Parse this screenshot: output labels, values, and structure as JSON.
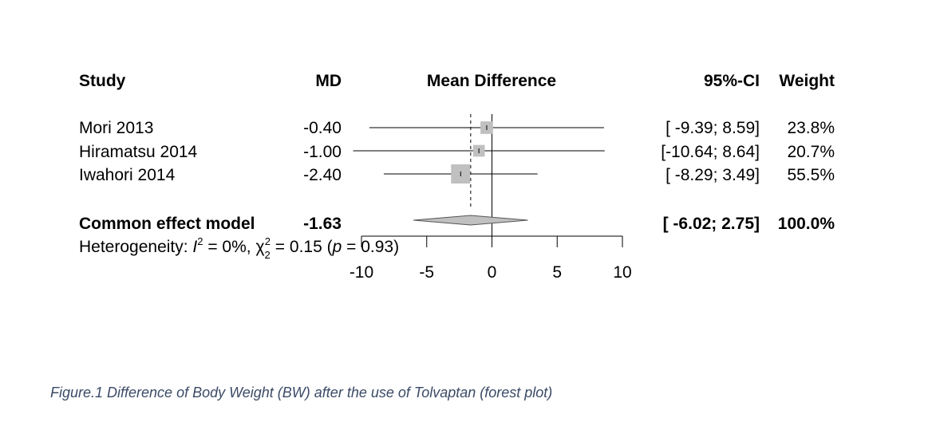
{
  "headers": {
    "study": "Study",
    "md": "MD",
    "mean_difference": "Mean Difference",
    "ci": "95%-CI",
    "weight": "Weight"
  },
  "studies": [
    {
      "name": "Mori 2013",
      "md_text": "-0.40",
      "ci_text": "[ -9.39; 8.59]",
      "weight_text": "23.8%"
    },
    {
      "name": "Hiramatsu 2014",
      "md_text": "-1.00",
      "ci_text": "[-10.64; 8.64]",
      "weight_text": "20.7%"
    },
    {
      "name": "Iwahori 2014",
      "md_text": "-2.40",
      "ci_text": "[ -8.29; 3.49]",
      "weight_text": "55.5%"
    }
  ],
  "pooled": {
    "label": "Common effect model",
    "md_text": "-1.63",
    "ci_text": "[ -6.02; 2.75]",
    "weight_text": "100.0%"
  },
  "heterogeneity": {
    "prefix": "Heterogeneity: ",
    "i2_symbol": "I",
    "i2_sup": "2",
    "i2_value": " = 0%, ",
    "chi_symbol": "χ",
    "chi_sup": "2",
    "chi_sub": "2",
    "chi_value": " = 0.15 (",
    "p_symbol": "p",
    "p_value": " = 0.93)"
  },
  "caption": "Figure.1  Difference of Body Weight (BW) after the use of Tolvaptan (forest plot)",
  "colors": {
    "square": "#c0c0c0",
    "diamond": "#c0c0c0",
    "line": "#000000",
    "caption": "#3b4a66"
  },
  "chart_data": {
    "type": "forest",
    "x_axis": {
      "range": [
        -10,
        10
      ],
      "ticks": [
        -10,
        -5,
        0,
        5,
        10
      ],
      "tick_labels": [
        "-10",
        "-5",
        "0",
        "5",
        "10"
      ]
    },
    "null_line": 0,
    "pooled_line": -1.63,
    "series": [
      {
        "study": "Mori 2013",
        "md": -0.4,
        "ci_lower": -9.39,
        "ci_upper": 8.59,
        "weight": 23.8
      },
      {
        "study": "Hiramatsu 2014",
        "md": -1.0,
        "ci_lower": -10.64,
        "ci_upper": 8.64,
        "weight": 20.7
      },
      {
        "study": "Iwahori 2014",
        "md": -2.4,
        "ci_lower": -8.29,
        "ci_upper": 3.49,
        "weight": 55.5
      }
    ],
    "pooled": {
      "model": "Common effect model",
      "md": -1.63,
      "ci_lower": -6.02,
      "ci_upper": 2.75,
      "weight": 100.0
    }
  }
}
